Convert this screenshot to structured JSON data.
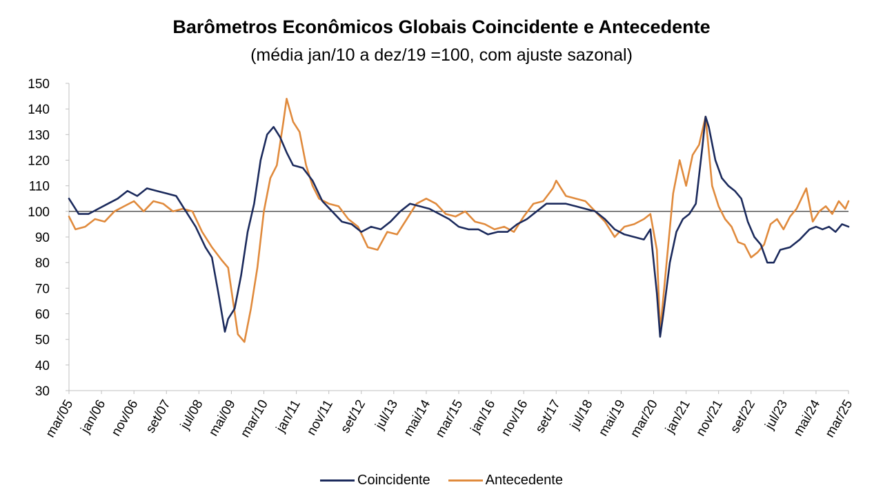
{
  "chart_data": {
    "type": "line",
    "title": "Barômetros Econômicos Globais Coincidente e Antecedente",
    "subtitle": "(média jan/10 a dez/19 =100, com ajuste sazonal)",
    "xlabel": "",
    "ylabel": "",
    "ylim": [
      30,
      150
    ],
    "y_ticks": [
      30,
      40,
      50,
      60,
      70,
      80,
      90,
      100,
      110,
      120,
      130,
      140,
      150
    ],
    "reference_line": 100,
    "grid": false,
    "legend_position": "bottom",
    "x_tick_labels": [
      "mar/05",
      "jan/06",
      "nov/06",
      "set/07",
      "jul/08",
      "mai/09",
      "mar/10",
      "jan/11",
      "nov/11",
      "set/12",
      "jul/13",
      "mai/14",
      "mar/15",
      "jan/16",
      "nov/16",
      "set/17",
      "jul/18",
      "mai/19",
      "mar/20",
      "jan/21",
      "nov/21",
      "set/22",
      "jul/23",
      "mai/24",
      "mar/25"
    ],
    "x_start": "mar/05",
    "x_end": "mar/25",
    "series": [
      {
        "name": "Coincidente",
        "color": "#1b2a5c",
        "points": [
          [
            "mar/05",
            105
          ],
          [
            "jun/05",
            99
          ],
          [
            "set/05",
            99
          ],
          [
            "dez/05",
            101
          ],
          [
            "mar/06",
            103
          ],
          [
            "jun/06",
            105
          ],
          [
            "set/06",
            108
          ],
          [
            "dez/06",
            106
          ],
          [
            "mar/07",
            109
          ],
          [
            "jun/07",
            108
          ],
          [
            "set/07",
            107
          ],
          [
            "dez/07",
            106
          ],
          [
            "mar/08",
            100
          ],
          [
            "jun/08",
            94
          ],
          [
            "set/08",
            86
          ],
          [
            "nov/08",
            82
          ],
          [
            "jan/09",
            68
          ],
          [
            "mar/09",
            53
          ],
          [
            "abr/09",
            58
          ],
          [
            "jun/09",
            62
          ],
          [
            "ago/09",
            75
          ],
          [
            "out/09",
            92
          ],
          [
            "dez/09",
            103
          ],
          [
            "fev/10",
            120
          ],
          [
            "abr/10",
            130
          ],
          [
            "jun/10",
            133
          ],
          [
            "ago/10",
            129
          ],
          [
            "out/10",
            123
          ],
          [
            "dez/10",
            118
          ],
          [
            "mar/11",
            117
          ],
          [
            "jun/11",
            112
          ],
          [
            "set/11",
            104
          ],
          [
            "dez/11",
            100
          ],
          [
            "mar/12",
            96
          ],
          [
            "jun/12",
            95
          ],
          [
            "set/12",
            92
          ],
          [
            "dez/12",
            94
          ],
          [
            "mar/13",
            93
          ],
          [
            "jun/13",
            96
          ],
          [
            "set/13",
            100
          ],
          [
            "dez/13",
            103
          ],
          [
            "mar/14",
            102
          ],
          [
            "jun/14",
            101
          ],
          [
            "set/14",
            99
          ],
          [
            "dez/14",
            97
          ],
          [
            "mar/15",
            94
          ],
          [
            "jun/15",
            93
          ],
          [
            "set/15",
            93
          ],
          [
            "dez/15",
            91
          ],
          [
            "mar/16",
            92
          ],
          [
            "jun/16",
            92
          ],
          [
            "set/16",
            95
          ],
          [
            "dez/16",
            97
          ],
          [
            "mar/17",
            100
          ],
          [
            "jun/17",
            103
          ],
          [
            "set/17",
            103
          ],
          [
            "dez/17",
            103
          ],
          [
            "mar/18",
            102
          ],
          [
            "jun/18",
            101
          ],
          [
            "set/18",
            100
          ],
          [
            "dez/18",
            97
          ],
          [
            "mar/19",
            93
          ],
          [
            "jun/19",
            91
          ],
          [
            "set/19",
            90
          ],
          [
            "dez/19",
            89
          ],
          [
            "fev/20",
            93
          ],
          [
            "abr/20",
            68
          ],
          [
            "mai/20",
            51
          ],
          [
            "jun/20",
            60
          ],
          [
            "ago/20",
            80
          ],
          [
            "out/20",
            92
          ],
          [
            "dez/20",
            97
          ],
          [
            "fev/21",
            99
          ],
          [
            "abr/21",
            103
          ],
          [
            "jun/21",
            125
          ],
          [
            "jul/21",
            137
          ],
          [
            "ago/21",
            133
          ],
          [
            "out/21",
            120
          ],
          [
            "dez/21",
            113
          ],
          [
            "fev/22",
            110
          ],
          [
            "abr/22",
            108
          ],
          [
            "jun/22",
            105
          ],
          [
            "ago/22",
            96
          ],
          [
            "out/22",
            90
          ],
          [
            "dez/22",
            87
          ],
          [
            "fev/23",
            80
          ],
          [
            "abr/23",
            80
          ],
          [
            "jun/23",
            85
          ],
          [
            "set/23",
            86
          ],
          [
            "dez/23",
            89
          ],
          [
            "mar/24",
            93
          ],
          [
            "mai/24",
            94
          ],
          [
            "jul/24",
            93
          ],
          [
            "set/24",
            94
          ],
          [
            "nov/24",
            92
          ],
          [
            "jan/25",
            95
          ],
          [
            "mar/25",
            94
          ]
        ]
      },
      {
        "name": "Antecedente",
        "color": "#e08a3c",
        "points": [
          [
            "mar/05",
            98
          ],
          [
            "mai/05",
            93
          ],
          [
            "ago/05",
            94
          ],
          [
            "nov/05",
            97
          ],
          [
            "fev/06",
            96
          ],
          [
            "mai/06",
            100
          ],
          [
            "ago/06",
            102
          ],
          [
            "nov/06",
            104
          ],
          [
            "fev/07",
            100
          ],
          [
            "mai/07",
            104
          ],
          [
            "ago/07",
            103
          ],
          [
            "nov/07",
            100
          ],
          [
            "fev/08",
            101
          ],
          [
            "mai/08",
            100
          ],
          [
            "ago/08",
            92
          ],
          [
            "nov/08",
            86
          ],
          [
            "fev/09",
            81
          ],
          [
            "abr/09",
            78
          ],
          [
            "jul/09",
            52
          ],
          [
            "set/09",
            49
          ],
          [
            "nov/09",
            62
          ],
          [
            "jan/10",
            78
          ],
          [
            "mar/10",
            100
          ],
          [
            "mai/10",
            113
          ],
          [
            "jul/10",
            118
          ],
          [
            "set/10",
            135
          ],
          [
            "out/10",
            144
          ],
          [
            "dez/10",
            135
          ],
          [
            "fev/11",
            131
          ],
          [
            "abr/11",
            118
          ],
          [
            "jun/11",
            110
          ],
          [
            "ago/11",
            105
          ],
          [
            "nov/11",
            103
          ],
          [
            "fev/12",
            102
          ],
          [
            "mai/12",
            97
          ],
          [
            "ago/12",
            94
          ],
          [
            "nov/12",
            86
          ],
          [
            "fev/13",
            85
          ],
          [
            "mai/13",
            92
          ],
          [
            "ago/13",
            91
          ],
          [
            "nov/13",
            97
          ],
          [
            "fev/14",
            103
          ],
          [
            "mai/14",
            105
          ],
          [
            "ago/14",
            103
          ],
          [
            "nov/14",
            99
          ],
          [
            "fev/15",
            98
          ],
          [
            "mai/15",
            100
          ],
          [
            "ago/15",
            96
          ],
          [
            "nov/15",
            95
          ],
          [
            "fev/16",
            93
          ],
          [
            "mai/16",
            94
          ],
          [
            "ago/16",
            92
          ],
          [
            "nov/16",
            98
          ],
          [
            "fev/17",
            103
          ],
          [
            "mai/17",
            104
          ],
          [
            "ago/17",
            109
          ],
          [
            "set/17",
            112
          ],
          [
            "dez/17",
            106
          ],
          [
            "mar/18",
            105
          ],
          [
            "jun/18",
            104
          ],
          [
            "set/18",
            100
          ],
          [
            "dez/18",
            96
          ],
          [
            "mar/19",
            90
          ],
          [
            "jun/19",
            94
          ],
          [
            "set/19",
            95
          ],
          [
            "dez/19",
            97
          ],
          [
            "fev/20",
            99
          ],
          [
            "abr/20",
            85
          ],
          [
            "mai/20",
            53
          ],
          [
            "jul/20",
            80
          ],
          [
            "set/20",
            107
          ],
          [
            "nov/20",
            120
          ],
          [
            "jan/21",
            110
          ],
          [
            "mar/21",
            122
          ],
          [
            "mai/21",
            126
          ],
          [
            "jul/21",
            137
          ],
          [
            "set/21",
            110
          ],
          [
            "nov/21",
            102
          ],
          [
            "jan/22",
            97
          ],
          [
            "mar/22",
            94
          ],
          [
            "mai/22",
            88
          ],
          [
            "jul/22",
            87
          ],
          [
            "set/22",
            82
          ],
          [
            "nov/22",
            84
          ],
          [
            "jan/23",
            87
          ],
          [
            "mar/23",
            95
          ],
          [
            "mai/23",
            97
          ],
          [
            "jul/23",
            93
          ],
          [
            "set/23",
            98
          ],
          [
            "nov/23",
            101
          ],
          [
            "fev/24",
            109
          ],
          [
            "abr/24",
            96
          ],
          [
            "jun/24",
            100
          ],
          [
            "ago/24",
            102
          ],
          [
            "out/24",
            99
          ],
          [
            "dez/24",
            104
          ],
          [
            "fev/25",
            101
          ],
          [
            "mar/25",
            104
          ]
        ]
      }
    ]
  }
}
